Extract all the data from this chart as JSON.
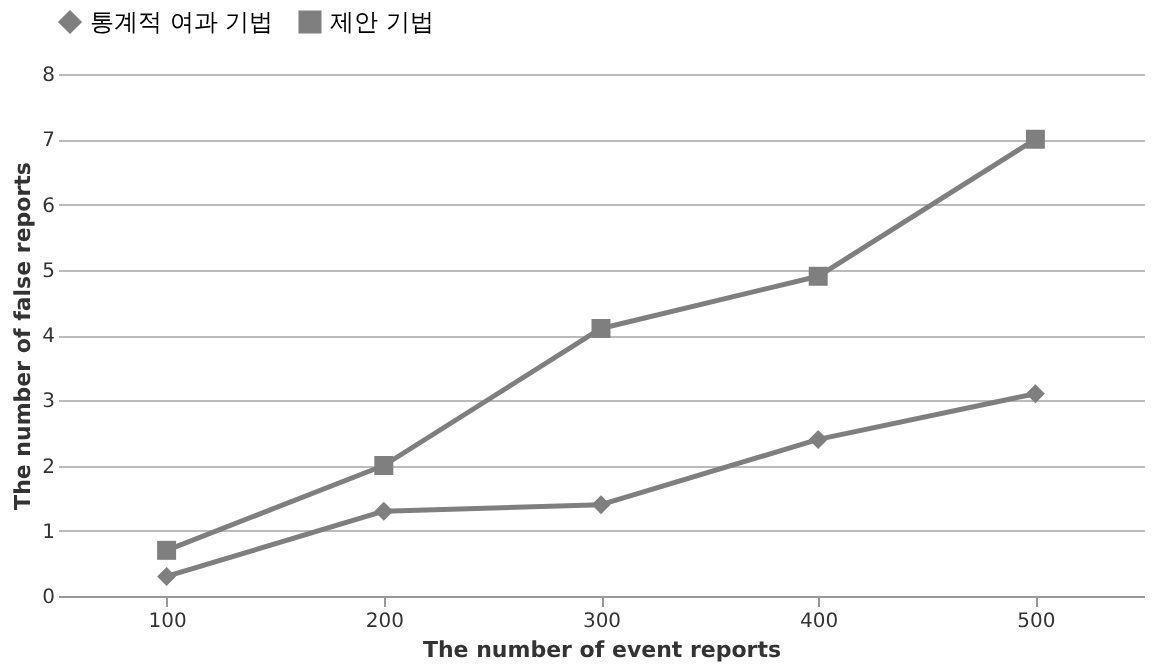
{
  "chart_data": {
    "type": "line",
    "xlabel": "The number of event reports",
    "ylabel": "The number of false reports",
    "categories": [
      "100",
      "200",
      "300",
      "400",
      "500"
    ],
    "series": [
      {
        "name": "통계적 여과 기법",
        "color": "#7f7f7f",
        "marker": "diamond",
        "values": [
          0.3,
          1.3,
          1.4,
          2.4,
          3.1
        ]
      },
      {
        "name": "제안 기법",
        "color": "#7f7f7f",
        "marker": "square",
        "values": [
          0.7,
          2.0,
          4.1,
          4.9,
          7.0
        ]
      }
    ],
    "ylim": [
      0,
      8
    ],
    "yticks": [
      0,
      1,
      2,
      3,
      4,
      5,
      6,
      7,
      8
    ],
    "grid": "y",
    "legend": "top",
    "line_style": "solid"
  }
}
